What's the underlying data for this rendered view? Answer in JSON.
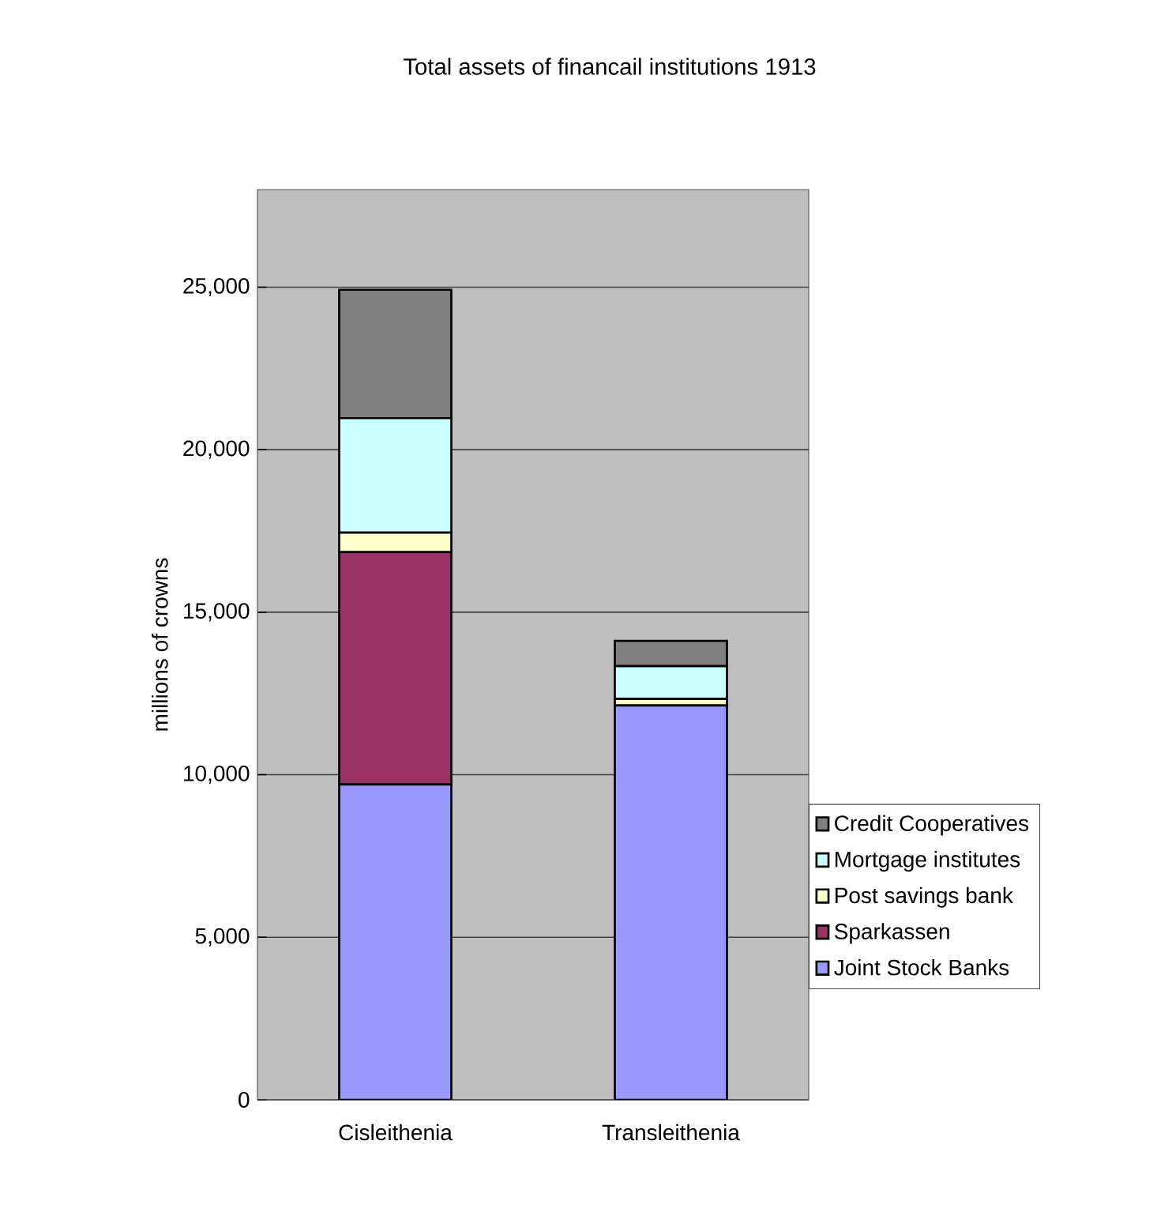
{
  "chart_data": {
    "type": "bar",
    "stacked": true,
    "title": "Total assets of financail institutions 1913",
    "ylabel": "millions of crowns",
    "categories": [
      "Cisleithenia",
      "Transleithenia"
    ],
    "series": [
      {
        "name": "Joint Stock Banks",
        "color": "#9999ff",
        "values": [
          9700,
          12130
        ]
      },
      {
        "name": "Sparkassen",
        "color": "#993366",
        "values": [
          7150,
          0
        ]
      },
      {
        "name": "Post savings bank",
        "color": "#ffffcc",
        "values": [
          600,
          200
        ]
      },
      {
        "name": "Mortgage institutes",
        "color": "#ccffff",
        "values": [
          3520,
          1010
        ]
      },
      {
        "name": "Credit Cooperatives",
        "color": "#808080",
        "values": [
          3950,
          780
        ]
      }
    ],
    "ylim": [
      0,
      28000
    ],
    "yticks": [
      0,
      {
        "value": 5000,
        "label": "5,000"
      },
      {
        "value": 10000,
        "label": "10,000"
      },
      {
        "value": 15000,
        "label": "15,000"
      },
      {
        "value": 20000,
        "label": "20,000"
      },
      {
        "value": 25000,
        "label": "25,000"
      }
    ],
    "grid": "y",
    "legend": "right"
  }
}
